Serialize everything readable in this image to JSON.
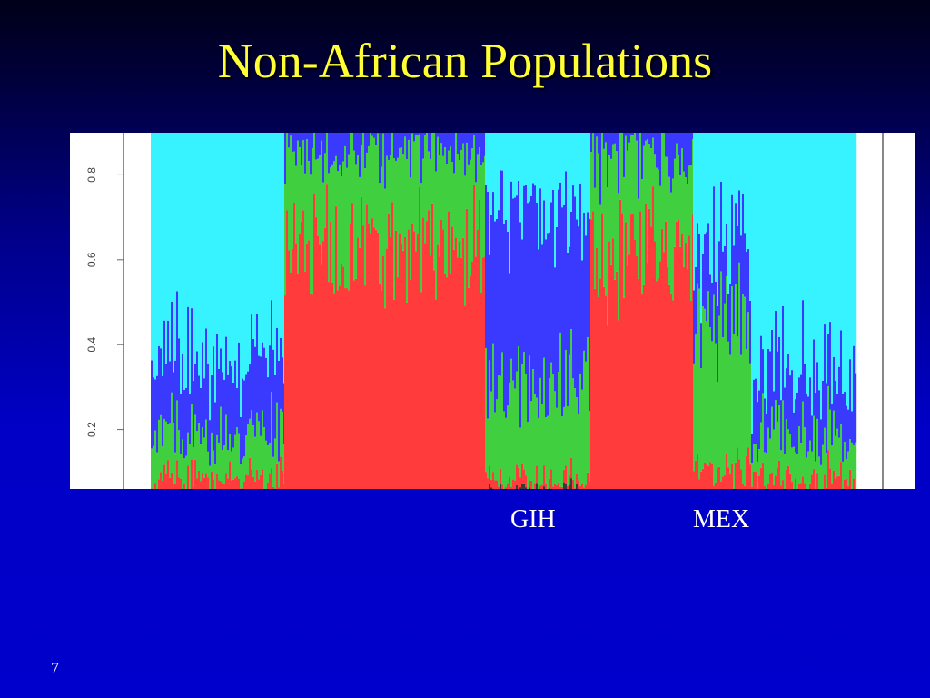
{
  "slide": {
    "title": "Non-African Populations",
    "page_number": "7"
  },
  "chart_data": {
    "type": "bar",
    "stacked": true,
    "ylim": [
      0,
      1
    ],
    "y_ticks": [
      "0.2",
      "0.4",
      "0.6",
      "0.8"
    ],
    "grid": false,
    "population_labels": [
      "GIH",
      "MEX"
    ],
    "component_colors": {
      "dark": "#3a3a3a",
      "red": "#ff3b3b",
      "green": "#3fcf3f",
      "blue": "#3a3aff",
      "cyan": "#37f3ff"
    },
    "series_order": [
      "dark",
      "red",
      "green",
      "blue",
      "cyan"
    ],
    "groups": [
      {
        "segments": {
          "dark": 0.02,
          "red": 0.06,
          "green": 0.1,
          "blue": 0.17,
          "cyan": 0.65
        }
      },
      {
        "segments": {
          "dark": 0.03,
          "red": 0.6,
          "green": 0.22,
          "blue": 0.12,
          "cyan": 0.03
        }
      },
      {
        "label": "GIH",
        "segments": {
          "dark": 0.05,
          "red": 0.03,
          "green": 0.22,
          "blue": 0.4,
          "cyan": 0.3
        }
      },
      {
        "segments": {
          "dark": 0.03,
          "red": 0.62,
          "green": 0.2,
          "blue": 0.13,
          "cyan": 0.02
        }
      },
      {
        "label": "MEX",
        "segments": {
          "dark": 0.02,
          "red": 0.08,
          "green": 0.35,
          "blue": 0.18,
          "cyan": 0.37
        }
      },
      {
        "segments": {
          "dark": 0.02,
          "red": 0.06,
          "green": 0.1,
          "blue": 0.14,
          "cyan": 0.68
        }
      }
    ]
  }
}
